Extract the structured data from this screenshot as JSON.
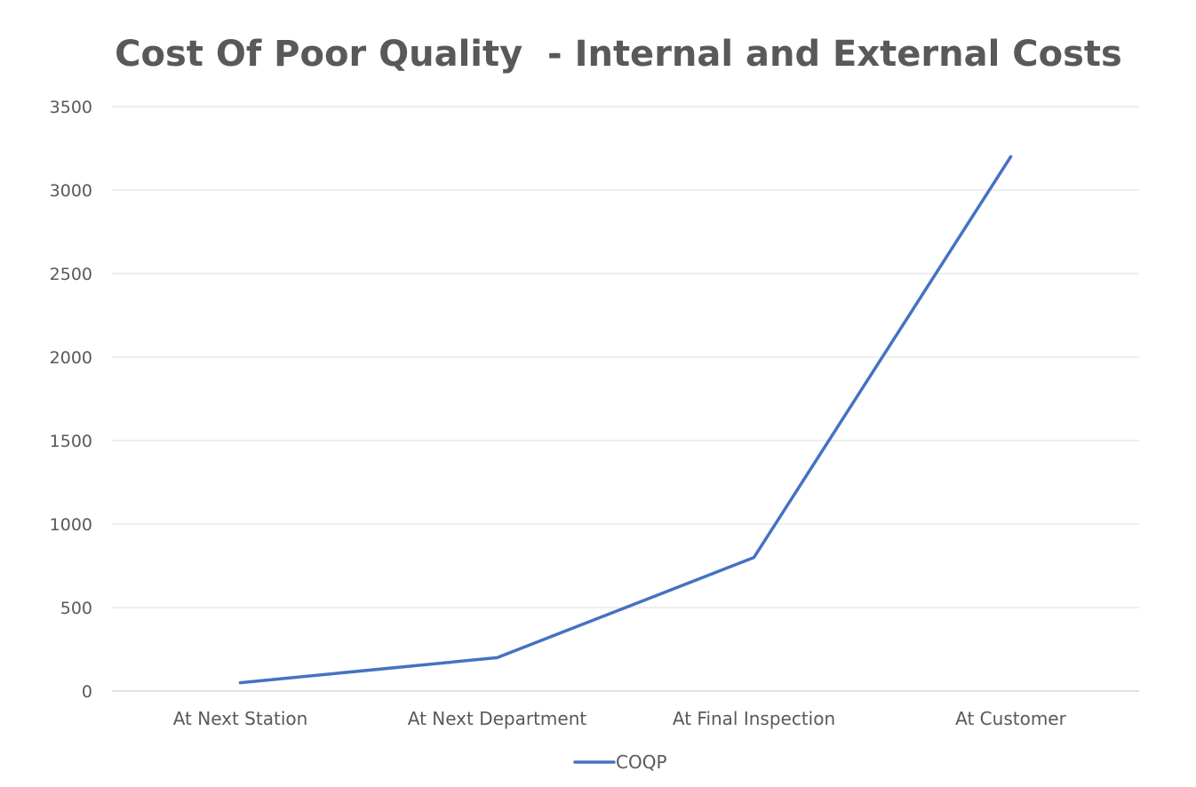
{
  "chart_data": {
    "type": "line",
    "title": "Cost Of Poor Quality  - Internal and External Costs",
    "xlabel": "",
    "ylabel": "",
    "categories": [
      "At Next Station",
      "At Next Department",
      "At Final Inspection",
      "At Customer"
    ],
    "series": [
      {
        "name": "COQP",
        "values": [
          50,
          200,
          800,
          3200
        ],
        "color": "#4472C4"
      }
    ],
    "ylim": [
      0,
      3500
    ],
    "yticks": [
      0,
      500,
      1000,
      1500,
      2000,
      2500,
      3000,
      3500
    ],
    "grid": true,
    "legend_position": "bottom"
  }
}
